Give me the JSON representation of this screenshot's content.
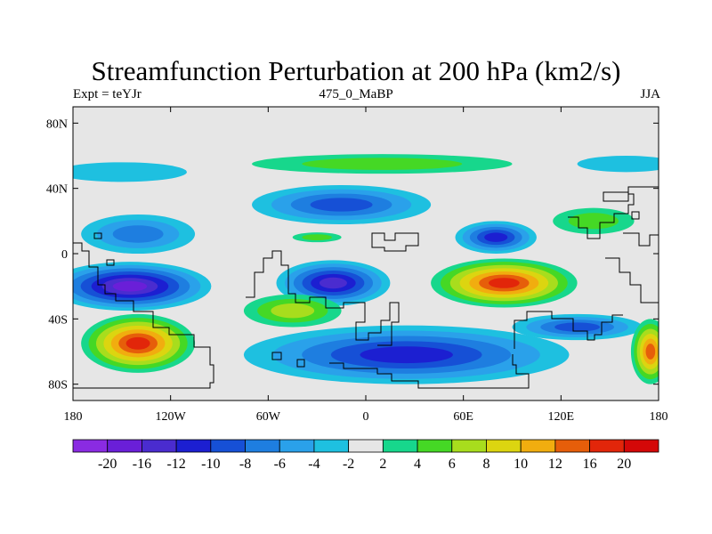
{
  "chart_data": {
    "type": "heatmap",
    "title": "Streamfunction Perturbation at 200 hPa (km2/s)",
    "subtitle_left": "Expt = teYJr",
    "subtitle_center": "475_0_MaBP",
    "subtitle_right": "JJA",
    "xlim": [
      -180,
      180
    ],
    "ylim": [
      -90,
      90
    ],
    "x_ticks": [
      {
        "value": -180,
        "label": "180"
      },
      {
        "value": -120,
        "label": "120W"
      },
      {
        "value": -60,
        "label": "60W"
      },
      {
        "value": 0,
        "label": "0"
      },
      {
        "value": 60,
        "label": "60E"
      },
      {
        "value": 120,
        "label": "120E"
      },
      {
        "value": 180,
        "label": "180"
      }
    ],
    "y_ticks": [
      {
        "value": 80,
        "label": "80N"
      },
      {
        "value": 40,
        "label": "40N"
      },
      {
        "value": 0,
        "label": "0"
      },
      {
        "value": -40,
        "label": "40S"
      },
      {
        "value": -80,
        "label": "80S"
      }
    ],
    "colorbar": {
      "levels": [
        "-20",
        "-16",
        "-12",
        "-10",
        "-8",
        "-6",
        "-4",
        "-2",
        "2",
        "4",
        "6",
        "8",
        "10",
        "12",
        "16",
        "20"
      ],
      "colors": [
        "#8a2be2",
        "#6a1fd8",
        "#4a2ccf",
        "#1c1fd1",
        "#1650d6",
        "#1e7ee0",
        "#2aa1ea",
        "#1ec0e0",
        "#e6e6e6",
        "#17d78c",
        "#45d825",
        "#a8dd1d",
        "#dcd510",
        "#f1ad0f",
        "#e65e0a",
        "#e2260a",
        "#d40808"
      ]
    },
    "features": [
      {
        "name": "neg-south-pacific",
        "lon": -145,
        "lat": -20,
        "rx": 50,
        "ry": 15,
        "peak": -16
      },
      {
        "name": "neg-pacific-subtropic",
        "lon": -140,
        "lat": 12,
        "rx": 35,
        "ry": 12,
        "peak": -6
      },
      {
        "name": "neg-north-pacific",
        "lon": -150,
        "lat": 50,
        "rx": 40,
        "ry": 6,
        "peak": -3
      },
      {
        "name": "neg-atlantic-band",
        "lon": -15,
        "lat": 30,
        "rx": 55,
        "ry": 12,
        "peak": -8
      },
      {
        "name": "neg-south-atlantic",
        "lon": -20,
        "lat": -18,
        "rx": 35,
        "ry": 14,
        "peak": -12
      },
      {
        "name": "neg-southern-ocean",
        "lon": 25,
        "lat": -62,
        "rx": 100,
        "ry": 18,
        "peak": -10
      },
      {
        "name": "neg-asia-north",
        "lon": 80,
        "lat": 10,
        "rx": 25,
        "ry": 10,
        "peak": -10
      },
      {
        "name": "neg-indian-south",
        "lon": 130,
        "lat": -45,
        "rx": 40,
        "ry": 8,
        "peak": -8
      },
      {
        "name": "neg-north-polar",
        "lon": 160,
        "lat": 55,
        "rx": 30,
        "ry": 5,
        "peak": -3
      },
      {
        "name": "pos-south-pacific",
        "lon": -140,
        "lat": -55,
        "rx": 35,
        "ry": 18,
        "peak": 16
      },
      {
        "name": "pos-indian",
        "lon": 85,
        "lat": -18,
        "rx": 45,
        "ry": 15,
        "peak": 16
      },
      {
        "name": "pos-south-atlantic",
        "lon": -45,
        "lat": -35,
        "rx": 30,
        "ry": 10,
        "peak": 6
      },
      {
        "name": "pos-north-atlantic",
        "lon": 10,
        "lat": 55,
        "rx": 80,
        "ry": 6,
        "peak": 4
      },
      {
        "name": "pos-equator",
        "lon": -30,
        "lat": 10,
        "rx": 15,
        "ry": 3,
        "peak": 5
      },
      {
        "name": "pos-north-west-pacific",
        "lon": 140,
        "lat": 20,
        "rx": 25,
        "ry": 8,
        "peak": 5
      },
      {
        "name": "pos-east-pacific",
        "lon": 175,
        "lat": -60,
        "rx": 12,
        "ry": 20,
        "peak": 14
      }
    ]
  }
}
